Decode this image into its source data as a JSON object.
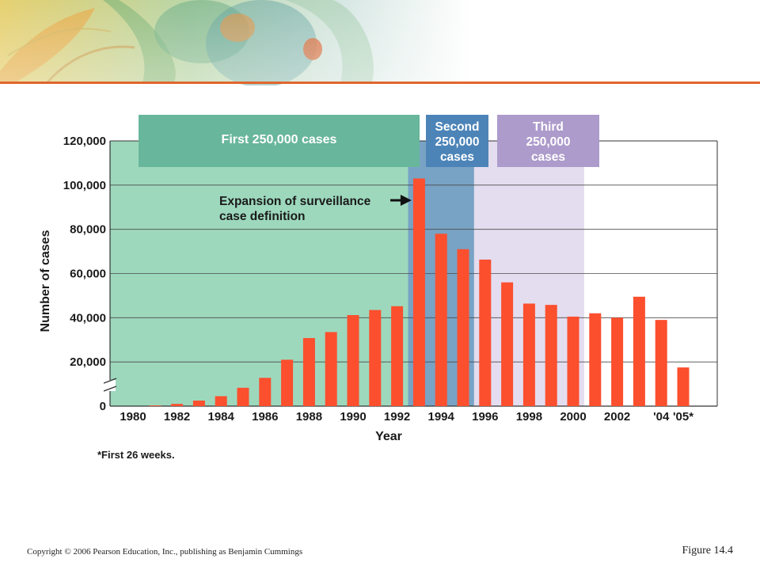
{
  "colors": {
    "bar": "#fb4f2e",
    "first_band": "#9dd8bd",
    "first_box": "#68b69b",
    "second_band": "#78a3c5",
    "second_box": "#4c84b8",
    "third_band": "#e4ddef",
    "third_box": "#ac9bcb",
    "accent_line": "#e0662e"
  },
  "phases": [
    {
      "label_lines": [
        "First 250,000 cases"
      ],
      "from": 1980,
      "to": 1993
    },
    {
      "label_lines": [
        "Second",
        "250,000",
        "cases"
      ],
      "from": 1993,
      "to": 1996
    },
    {
      "label_lines": [
        "Third",
        "250,000",
        "cases"
      ],
      "from": 1996,
      "to": 2001
    }
  ],
  "annotation": {
    "lines": [
      "Expansion of surveillance",
      "case definition"
    ],
    "arrow_year": 1993
  },
  "footnote": "*First 26 weeks.",
  "figure_label": "Figure 14.4",
  "copyright": "Copyright © 2006 Pearson Education, Inc., publishing as Benjamin Cummings",
  "chart_data": {
    "type": "bar",
    "xlabel": "Year",
    "ylabel": "Number of cases",
    "ylim": [
      0,
      120000
    ],
    "yticks": [
      0,
      20000,
      40000,
      60000,
      80000,
      100000,
      120000
    ],
    "ytick_labels": [
      "0",
      "20,000",
      "40,000",
      "60,000",
      "80,000",
      "100,000",
      "120,000"
    ],
    "xtick_labels": [
      {
        "year": 1980,
        "label": "1980"
      },
      {
        "year": 1982,
        "label": "1982"
      },
      {
        "year": 1984,
        "label": "1984"
      },
      {
        "year": 1986,
        "label": "1986"
      },
      {
        "year": 1988,
        "label": "1988"
      },
      {
        "year": 1990,
        "label": "1990"
      },
      {
        "year": 1992,
        "label": "1992"
      },
      {
        "year": 1994,
        "label": "1994"
      },
      {
        "year": 1996,
        "label": "1996"
      },
      {
        "year": 1998,
        "label": "1998"
      },
      {
        "year": 2000,
        "label": "2000"
      },
      {
        "year": 2002,
        "label": "2002"
      },
      {
        "year": 2004,
        "label": "'04"
      },
      {
        "year": 2005,
        "label": "'05*"
      }
    ],
    "grid": true,
    "categories": [
      1980,
      1981,
      1982,
      1983,
      1984,
      1985,
      1986,
      1987,
      1988,
      1989,
      1990,
      1991,
      1992,
      1993,
      1994,
      1995,
      1996,
      1997,
      1998,
      1999,
      2000,
      2001,
      2002,
      2003,
      2004,
      2005
    ],
    "values": [
      0,
      300,
      1000,
      2500,
      4500,
      8300,
      12800,
      21000,
      30800,
      33500,
      41200,
      43500,
      45200,
      103000,
      78000,
      71000,
      66300,
      56000,
      46400,
      45800,
      40500,
      42000,
      40000,
      49500,
      39000,
      17500
    ]
  }
}
